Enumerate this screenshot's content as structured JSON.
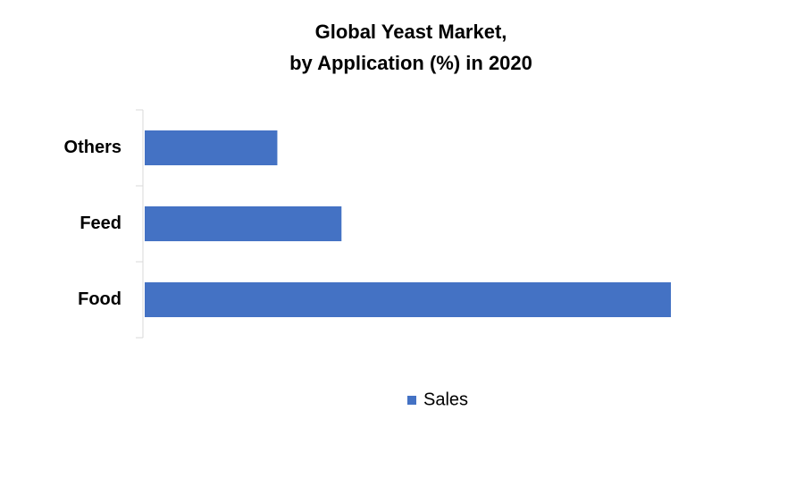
{
  "chart_data": {
    "type": "bar",
    "orientation": "horizontal",
    "title": [
      "Global Yeast Market,",
      "by Application (%) in 2020"
    ],
    "categories": [
      "Food",
      "Feed",
      "Others"
    ],
    "series": [
      {
        "name": "Sales",
        "color": "#4472c4",
        "values": [
          61.5,
          23,
          15.5
        ]
      }
    ],
    "legend": "bottom"
  }
}
